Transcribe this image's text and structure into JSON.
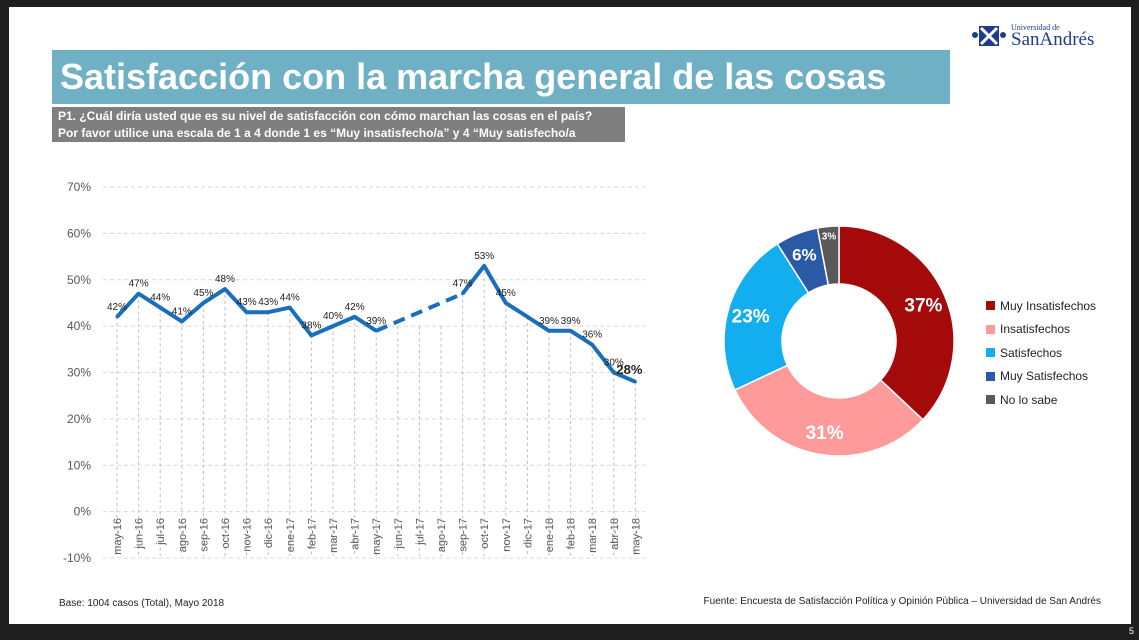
{
  "slide": {
    "title": "Satisfacción con la marcha general de las cosas",
    "subtitle_line1": "P1. ¿Cuál diría usted que es su nivel de satisfacción con cómo marchan las cosas en el país?",
    "subtitle_line2": "Por favor utilice una escala de 1 a 4 donde 1 es “Muy insatisfecho/a” y 4 “Muy satisfecho/a",
    "logo_small": "Universidad de",
    "logo_big": "SanAndrés",
    "footer_left": "Base: 1004 casos (Total), Mayo 2018",
    "footer_right": "Fuente: Encuesta de Satisfacción Política y Opinión Pública – Universidad de San Andrés",
    "page_number": "5"
  },
  "colors": {
    "title_bar": "#6fb0c4",
    "subtitle_bar": "#7f7f7f",
    "line": "#1a6fba"
  },
  "chart_data": [
    {
      "type": "line",
      "categories": [
        "may-16",
        "jun-16",
        "jul-16",
        "ago-16",
        "sep-16",
        "oct-16",
        "nov-16",
        "dic-16",
        "ene-17",
        "feb-17",
        "mar-17",
        "abr-17",
        "may-17",
        "jun-17",
        "jul-17",
        "ago-17",
        "sep-17",
        "oct-17",
        "nov-17",
        "dic-17",
        "ene-18",
        "feb-18",
        "mar-18",
        "abr-18",
        "may-18"
      ],
      "values": [
        42,
        47,
        44,
        41,
        45,
        48,
        43,
        43,
        44,
        38,
        40,
        42,
        39,
        null,
        null,
        null,
        47,
        53,
        45,
        42,
        39,
        39,
        36,
        30,
        28
      ],
      "data_labels": [
        "42%",
        "47%",
        "44%",
        "41%",
        "45%",
        "48%",
        "43%",
        "43%",
        "44%",
        "38%",
        "40%",
        "42%",
        "39%",
        "",
        "",
        "",
        "47%",
        "53%",
        "45%",
        "",
        "39%",
        "39%",
        "36%",
        "30%",
        "28%"
      ],
      "gap_style": "dashed",
      "ylim": [
        -10,
        70
      ],
      "yticks": [
        "-10%",
        "0%",
        "10%",
        "20%",
        "30%",
        "40%",
        "50%",
        "60%",
        "70%"
      ],
      "grid": true
    },
    {
      "type": "pie",
      "donut": true,
      "labels": [
        "Muy Insatisfechos",
        "Insatisfechos",
        "Satisfechos",
        "Muy Satisfechos",
        "No lo sabe"
      ],
      "values": [
        37,
        31,
        23,
        6,
        3
      ],
      "data_labels": [
        "37%",
        "31%",
        "23%",
        "6%",
        "3%"
      ],
      "colors": [
        "#a50a0a",
        "#ff9a9a",
        "#12aef0",
        "#2a5aa6",
        "#595959"
      ],
      "legend": "right"
    }
  ]
}
